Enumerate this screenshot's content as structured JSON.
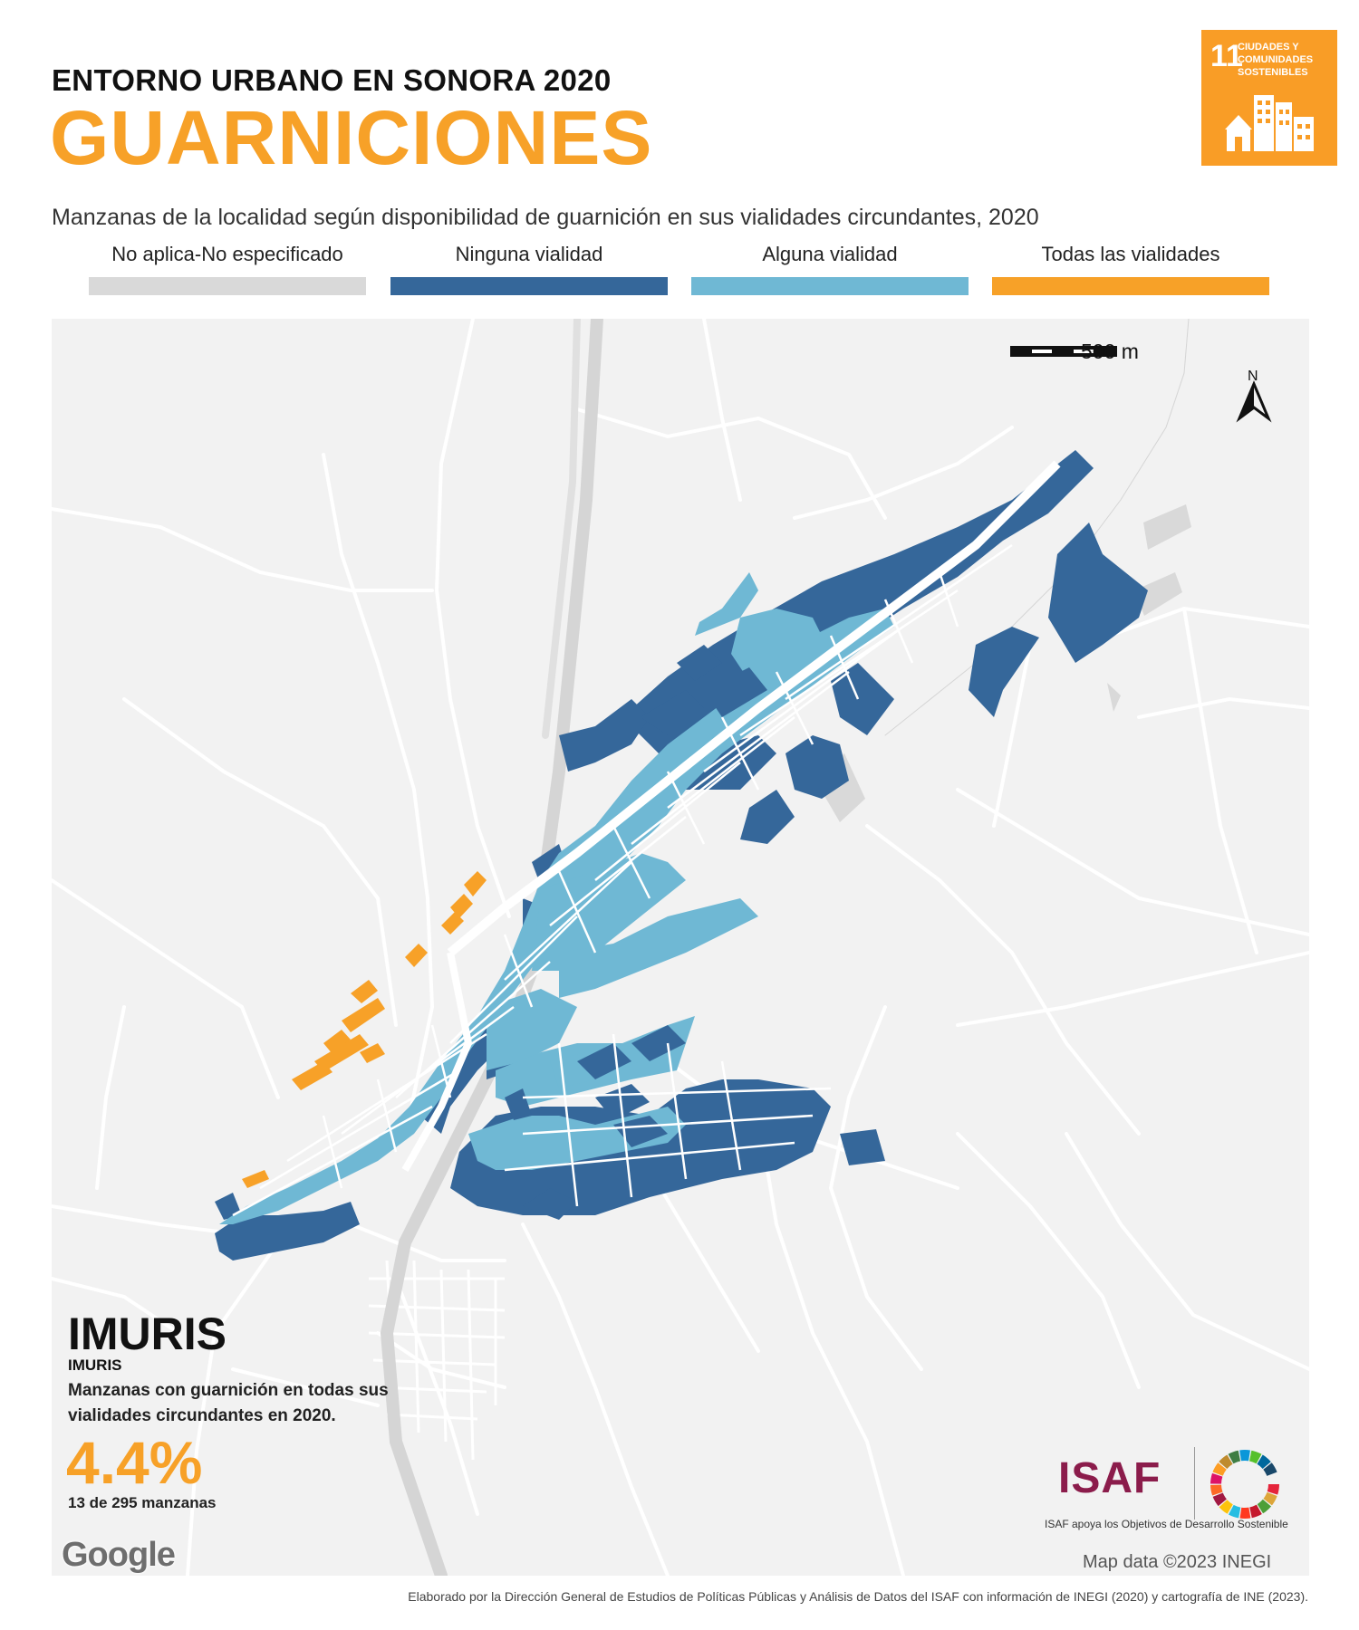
{
  "header": {
    "supertitle": "ENTORNO URBANO EN SONORA 2020",
    "title": "GUARNICIONES",
    "subtitle": "Manzanas de la localidad según disponibilidad de guarnición en sus vialidades circundantes, 2020"
  },
  "sdg_badge": {
    "number": "11",
    "text": "CIUDADES Y COMUNIDADES SOSTENIBLES",
    "color": "#F99D26"
  },
  "legend": [
    {
      "label": "No aplica-No especificado",
      "color": "#D9D9D9"
    },
    {
      "label": "Ninguna vialidad",
      "color": "#35679A"
    },
    {
      "label": "Alguna vialidad",
      "color": "#6FB8D4"
    },
    {
      "label": "Todas las vialidades",
      "color": "#F7A128"
    }
  ],
  "map": {
    "scale_label": "500 m",
    "north_label": "N",
    "attribution": "Map data ©2023 INEGI",
    "basemap_provider": "Google"
  },
  "locality": {
    "name": "IMURIS",
    "municipality": "IMURIS",
    "stat_description": "Manzanas con guarnición en todas sus vialidades circundantes en 2020.",
    "stat_value": "4.4%",
    "stat_count": "13 de 295 manzanas",
    "share_all_roads_pct": 4.4,
    "blocks_all_roads": 13,
    "blocks_total": 295
  },
  "logos": {
    "isaf": "ISAF",
    "isaf_caption": "ISAF apoya los Objetivos de Desarrollo Sostenible"
  },
  "footer": "Elaborado por la Dirección General de Estudios de Políticas Públicas y Análisis de Datos del ISAF con información de INEGI (2020) y cartografía de INE (2023)."
}
